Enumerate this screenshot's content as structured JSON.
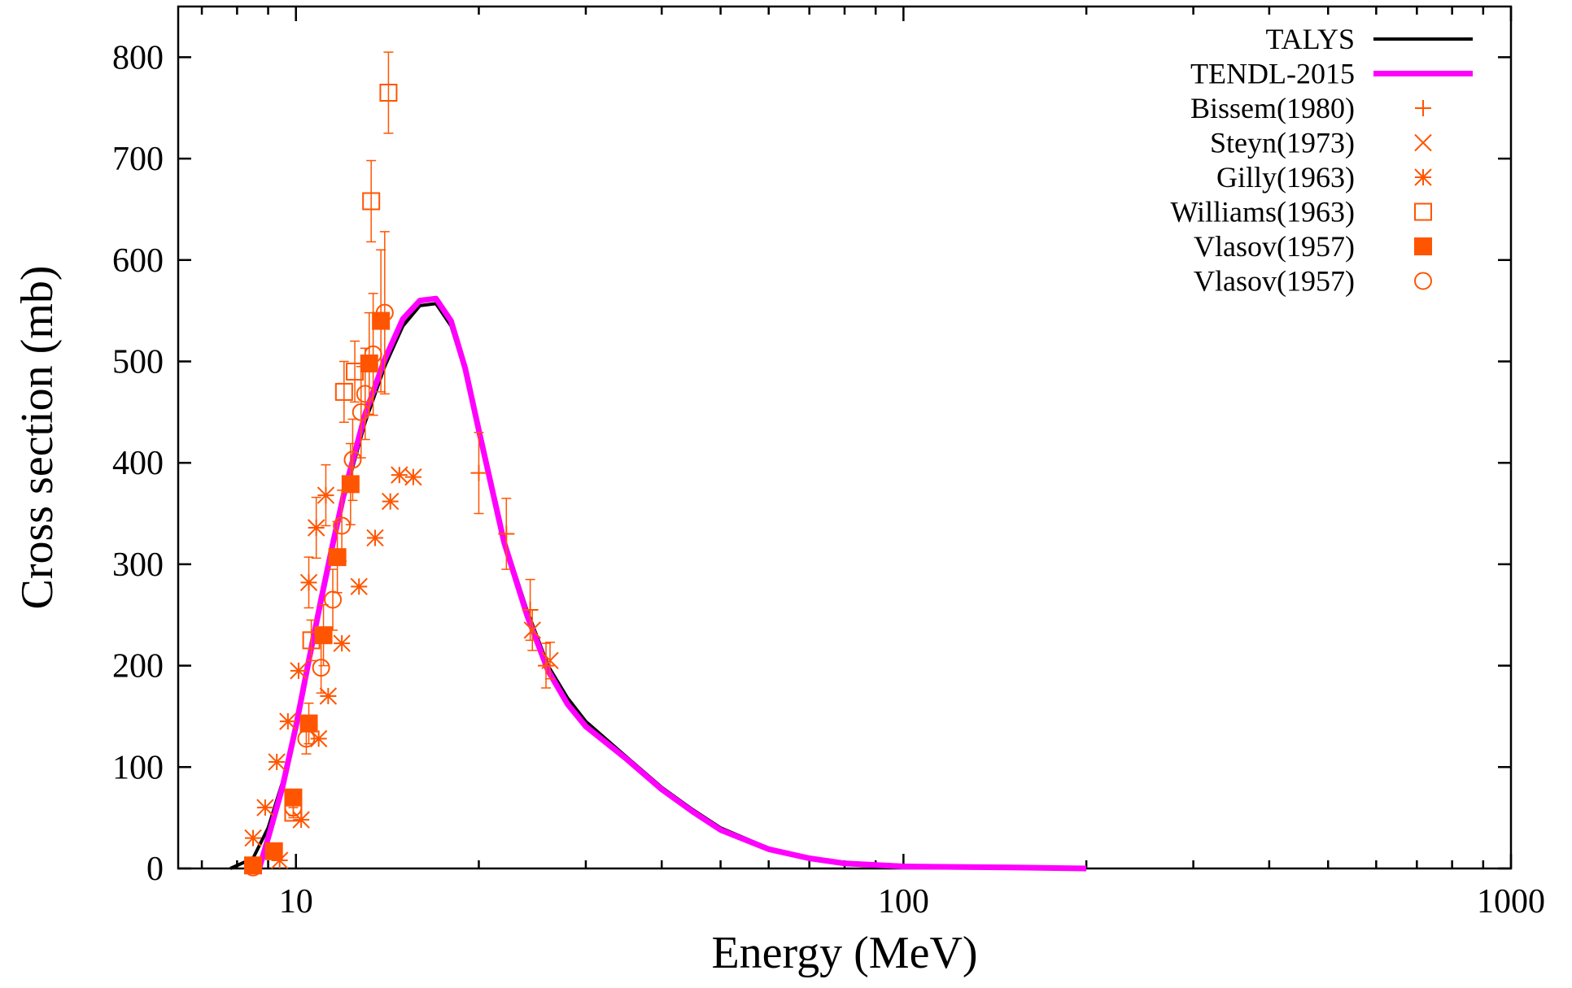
{
  "chart_data": {
    "type": "scatter",
    "xlabel": "Energy (MeV)",
    "ylabel": "Cross section (mb)",
    "xscale": "log",
    "xlim": [
      6.4,
      1000
    ],
    "ylim": [
      0,
      850
    ],
    "x_ticks": [
      {
        "value": 10,
        "label": "10"
      },
      {
        "value": 100,
        "label": "100"
      },
      {
        "value": 1000,
        "label": "1000"
      }
    ],
    "y_ticks": [
      {
        "value": 0,
        "label": "0"
      },
      {
        "value": 100,
        "label": "100"
      },
      {
        "value": 200,
        "label": "200"
      },
      {
        "value": 300,
        "label": "300"
      },
      {
        "value": 400,
        "label": "400"
      },
      {
        "value": 500,
        "label": "500"
      },
      {
        "value": 600,
        "label": "600"
      },
      {
        "value": 700,
        "label": "700"
      },
      {
        "value": 800,
        "label": "800"
      }
    ],
    "grid": false,
    "legend_position": "top-right",
    "lines": [
      {
        "name": "TALYS",
        "color": "#000000",
        "x": [
          7.8,
          8.5,
          9.0,
          9.5,
          10,
          10.5,
          11,
          11.5,
          12,
          13,
          14,
          15,
          16,
          17,
          18,
          19,
          20,
          22,
          24,
          26,
          28,
          30,
          35,
          40,
          45,
          50,
          60,
          70,
          80,
          100,
          150,
          200
        ],
        "y": [
          0,
          10,
          40,
          85,
          140,
          200,
          260,
          315,
          365,
          440,
          495,
          535,
          555,
          557,
          535,
          490,
          430,
          325,
          255,
          200,
          168,
          145,
          110,
          80,
          58,
          40,
          20,
          10,
          6,
          3,
          1,
          0
        ]
      },
      {
        "name": "TENDL-2015",
        "color": "#ff00ff",
        "x": [
          8.7,
          9.0,
          9.5,
          10,
          10.5,
          11,
          11.5,
          12,
          13,
          14,
          15,
          16,
          17,
          18,
          19,
          20,
          22,
          24,
          26,
          28,
          30,
          35,
          40,
          45,
          50,
          60,
          70,
          80,
          100,
          150,
          200
        ],
        "y": [
          0,
          30,
          80,
          140,
          205,
          265,
          320,
          370,
          448,
          502,
          542,
          560,
          562,
          540,
          493,
          432,
          322,
          250,
          195,
          162,
          140,
          108,
          78,
          56,
          38,
          19,
          10,
          5,
          2,
          1,
          0
        ]
      }
    ],
    "series": [
      {
        "name": "Bissem(1980)",
        "marker": "plus",
        "color": "#ff5500",
        "points": [
          {
            "x": 20.0,
            "y": 390,
            "err": 40
          },
          {
            "x": 22.2,
            "y": 330,
            "err": 35
          },
          {
            "x": 24.3,
            "y": 255,
            "err": 30
          },
          {
            "x": 25.8,
            "y": 200,
            "err": 22
          }
        ]
      },
      {
        "name": "Steyn(1973)",
        "marker": "x",
        "color": "#ff5500",
        "points": [
          {
            "x": 24.5,
            "y": 235,
            "err": 20
          },
          {
            "x": 26.2,
            "y": 205,
            "err": 18
          }
        ]
      },
      {
        "name": "Gilly(1963)",
        "marker": "star",
        "color": "#ff5500",
        "points": [
          {
            "x": 8.5,
            "y": 30,
            "err": 0
          },
          {
            "x": 8.9,
            "y": 60,
            "err": 0
          },
          {
            "x": 9.3,
            "y": 105,
            "err": 0
          },
          {
            "x": 9.7,
            "y": 145,
            "err": 0
          },
          {
            "x": 10.1,
            "y": 195,
            "err": 0
          },
          {
            "x": 10.5,
            "y": 282,
            "err": 25
          },
          {
            "x": 10.8,
            "y": 336,
            "err": 30
          },
          {
            "x": 11.2,
            "y": 368,
            "err": 30
          },
          {
            "x": 11.3,
            "y": 170,
            "err": 0
          },
          {
            "x": 11.9,
            "y": 222,
            "err": 0
          },
          {
            "x": 12.7,
            "y": 278,
            "err": 0
          },
          {
            "x": 13.5,
            "y": 326,
            "err": 0
          },
          {
            "x": 14.3,
            "y": 362,
            "err": 0
          },
          {
            "x": 14.8,
            "y": 388,
            "err": 0
          },
          {
            "x": 15.6,
            "y": 386,
            "err": 0
          },
          {
            "x": 10.9,
            "y": 128,
            "err": 0
          },
          {
            "x": 10.2,
            "y": 48,
            "err": 0
          },
          {
            "x": 9.4,
            "y": 8,
            "err": 0
          }
        ]
      },
      {
        "name": "Williams(1963)",
        "marker": "square-open",
        "color": "#ff5500",
        "points": [
          {
            "x": 9.9,
            "y": 55,
            "err": 5
          },
          {
            "x": 10.6,
            "y": 225,
            "err": 20
          },
          {
            "x": 12.0,
            "y": 470,
            "err": 30
          },
          {
            "x": 12.5,
            "y": 490,
            "err": 30
          },
          {
            "x": 13.3,
            "y": 658,
            "err": 40
          },
          {
            "x": 14.2,
            "y": 765,
            "err": 40
          }
        ]
      },
      {
        "name": "Vlasov(1957)",
        "marker": "square-filled",
        "color": "#ff5500",
        "points": [
          {
            "x": 8.5,
            "y": 3,
            "err": 0
          },
          {
            "x": 9.2,
            "y": 17,
            "err": 4
          },
          {
            "x": 9.9,
            "y": 70,
            "err": 8
          },
          {
            "x": 10.5,
            "y": 143,
            "err": 20
          },
          {
            "x": 11.1,
            "y": 230,
            "err": 30
          },
          {
            "x": 11.7,
            "y": 307,
            "err": 35
          },
          {
            "x": 12.3,
            "y": 379,
            "err": 40
          },
          {
            "x": 13.2,
            "y": 498,
            "err": 50
          },
          {
            "x": 13.8,
            "y": 540,
            "err": 70
          }
        ]
      },
      {
        "name": "Vlasov(1957)",
        "marker": "circle-open",
        "color": "#ff5500",
        "points": [
          {
            "x": 8.5,
            "y": 1,
            "err": 0
          },
          {
            "x": 9.9,
            "y": 60,
            "err": 8
          },
          {
            "x": 10.4,
            "y": 128,
            "err": 15
          },
          {
            "x": 11.0,
            "y": 198,
            "err": 25
          },
          {
            "x": 11.5,
            "y": 265,
            "err": 30
          },
          {
            "x": 11.9,
            "y": 338,
            "err": 35
          },
          {
            "x": 12.4,
            "y": 403,
            "err": 40
          },
          {
            "x": 12.8,
            "y": 450,
            "err": 45
          },
          {
            "x": 13.0,
            "y": 468,
            "err": 45
          },
          {
            "x": 13.4,
            "y": 507,
            "err": 60
          },
          {
            "x": 14.0,
            "y": 548,
            "err": 80
          }
        ]
      }
    ]
  }
}
